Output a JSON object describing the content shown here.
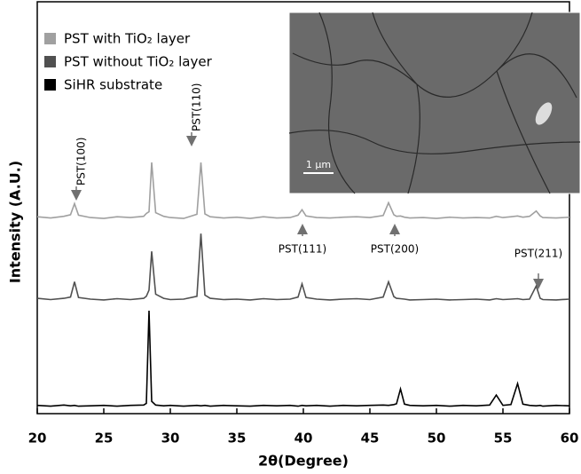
{
  "chart_data": {
    "type": "line",
    "x_label": "2θ(Degree)",
    "y_label": "Intensity (A.U.)",
    "xlim": [
      20,
      60
    ],
    "xticks": [
      20,
      25,
      30,
      35,
      40,
      45,
      50,
      55,
      60
    ],
    "ylim": [
      0,
      100
    ],
    "legend": "upper left",
    "x": [
      20,
      21,
      22,
      22.5,
      22.8,
      23.1,
      24,
      25,
      26,
      27,
      28,
      28.2,
      28.4,
      28.6,
      28.9,
      29.5,
      30,
      31,
      32,
      32.3,
      32.6,
      33,
      34,
      35,
      36,
      37,
      38,
      39,
      39.6,
      39.9,
      40.2,
      41,
      42,
      43,
      44,
      45,
      46,
      46.4,
      46.8,
      47,
      47.3,
      47.6,
      48,
      49,
      50,
      51,
      52,
      53,
      54,
      54.5,
      55,
      55.6,
      56.1,
      56.5,
      57,
      57.5,
      57.8,
      58,
      59,
      60
    ],
    "series": [
      {
        "name": "PST with TiO₂ layer",
        "color": "#a0a0a0",
        "values": [
          47.8,
          47.5,
          47.9,
          48.3,
          51,
          48.2,
          47.6,
          47.4,
          47.8,
          47.6,
          47.9,
          48.6,
          49,
          61,
          48.8,
          47.9,
          47.6,
          47.4,
          48.4,
          61,
          48.5,
          47.8,
          47.5,
          47.7,
          47.4,
          47.8,
          47.5,
          47.6,
          48.2,
          49.5,
          48,
          47.6,
          47.5,
          47.7,
          47.8,
          47.6,
          48.1,
          51.2,
          48.3,
          47.9,
          48,
          47.7,
          47.5,
          47.6,
          47.4,
          47.7,
          47.5,
          47.6,
          47.5,
          47.9,
          47.6,
          47.8,
          48,
          47.7,
          47.9,
          49.2,
          48,
          47.6,
          47.5,
          47.7
        ]
      },
      {
        "name": "PST without TiO₂ layer",
        "color": "#505050",
        "values": [
          28,
          27.7,
          28,
          28.3,
          32,
          28.2,
          27.8,
          27.6,
          27.9,
          27.7,
          28,
          28.5,
          30,
          39.4,
          29,
          28,
          27.7,
          27.8,
          28.5,
          43.7,
          28.8,
          28,
          27.7,
          27.8,
          27.6,
          27.9,
          27.7,
          27.8,
          28.3,
          31.5,
          28.2,
          27.8,
          27.6,
          27.8,
          27.9,
          27.7,
          28.3,
          32,
          28.4,
          28,
          27.9,
          27.8,
          27.6,
          27.7,
          27.8,
          27.6,
          27.7,
          27.8,
          27.6,
          27.9,
          27.7,
          27.8,
          27.9,
          27.7,
          27.8,
          31,
          28,
          27.7,
          27.6,
          27.8
        ]
      },
      {
        "name": "SiHR substrate",
        "color": "#000000",
        "values": [
          2,
          1.8,
          2.1,
          1.9,
          2,
          1.8,
          1.9,
          2,
          1.8,
          2,
          2.1,
          2.5,
          25,
          3,
          2.1,
          1.9,
          2,
          1.8,
          2,
          1.9,
          2,
          1.8,
          2,
          1.9,
          1.8,
          2,
          1.9,
          2,
          1.8,
          2,
          1.9,
          2,
          1.8,
          2,
          1.9,
          2,
          2.1,
          2,
          2.2,
          2.4,
          6,
          2.3,
          2,
          1.9,
          2,
          1.8,
          2,
          1.9,
          2.1,
          4.5,
          2,
          2.2,
          7.3,
          2.3,
          2,
          1.9,
          2,
          1.8,
          2,
          1.9
        ]
      }
    ],
    "annotations": [
      "PST(100)",
      "PST(110)",
      "PST(111)",
      "PST(200)",
      "PST(211)"
    ],
    "inset_scale_bar": "1 μm"
  }
}
